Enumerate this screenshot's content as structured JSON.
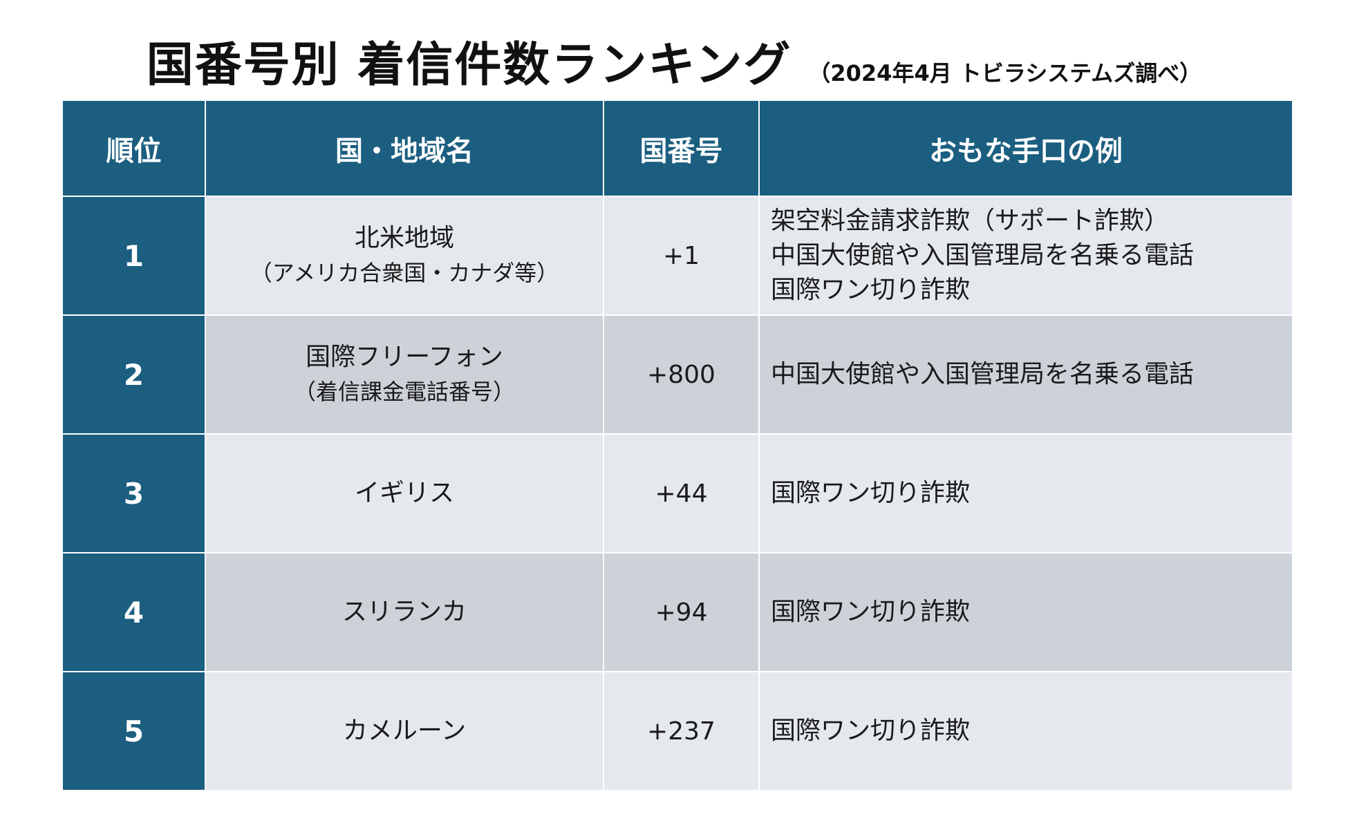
{
  "title": "国番号別 着信件数ランキング",
  "subtitle": "（2024年4月 トビラシステムズ調べ）",
  "table": {
    "headers": [
      "順位",
      "国・地域名",
      "国番号",
      "おもな手口の例"
    ],
    "rows": [
      {
        "rank": "1",
        "region": "北米地域",
        "region_sub": "（アメリカ合衆国・カナダ等）",
        "code": "+1",
        "methods": [
          "架空料金請求詐欺（サポート詐欺）",
          "中国大使館や入国管理局を名乗る電話",
          "国際ワン切り詐欺"
        ]
      },
      {
        "rank": "2",
        "region": "国際フリーフォン",
        "region_sub": "（着信課金電話番号）",
        "code": "+800",
        "methods": [
          "中国大使館や入国管理局を名乗る電話"
        ]
      },
      {
        "rank": "3",
        "region": "イギリス",
        "region_sub": "",
        "code": "+44",
        "methods": [
          "国際ワン切り詐欺"
        ]
      },
      {
        "rank": "4",
        "region": "スリランカ",
        "region_sub": "",
        "code": "+94",
        "methods": [
          "国際ワン切り詐欺"
        ]
      },
      {
        "rank": "5",
        "region": "カメルーン",
        "region_sub": "",
        "code": "+237",
        "methods": [
          "国際ワン切り詐欺"
        ]
      }
    ]
  },
  "colors": {
    "header_bg": "#1b5e80",
    "row_light": "#e5e9ed",
    "row_dark": "#cdd2d9"
  }
}
